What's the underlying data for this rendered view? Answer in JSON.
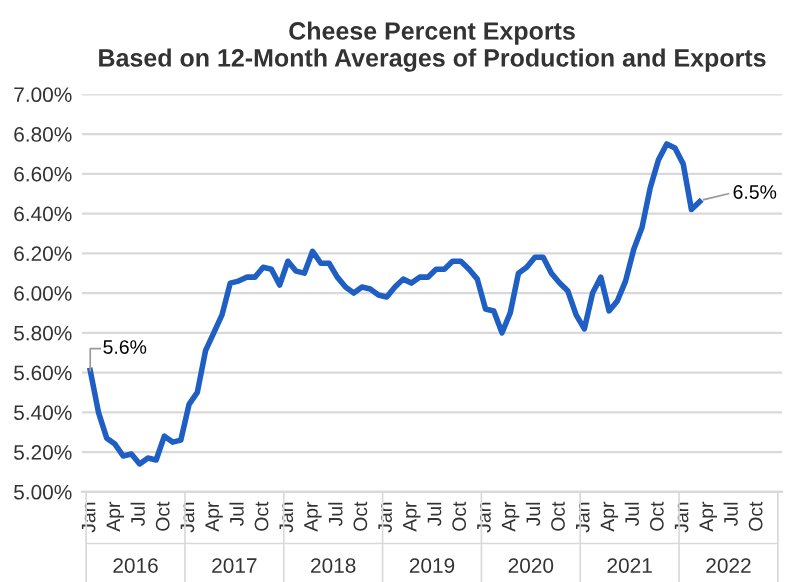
{
  "chart_data": {
    "type": "line",
    "title": "Cheese Percent Exports\nBased on 12-Month Averages of Production and Exports",
    "categories": [
      "Jan",
      null,
      null,
      "Apr",
      null,
      null,
      "Jul",
      null,
      null,
      "Oct",
      null,
      null,
      "Jan",
      null,
      null,
      "Apr",
      null,
      null,
      "Jul",
      null,
      null,
      "Oct",
      null,
      null,
      "Jan",
      null,
      null,
      "Apr",
      null,
      null,
      "Jul",
      null,
      null,
      "Oct",
      null,
      null,
      "Jan",
      null,
      null,
      "Apr",
      null,
      null,
      "Jul",
      null,
      null,
      "Oct",
      null,
      null,
      "Jan",
      null,
      null,
      "Apr",
      null,
      null,
      "Jul",
      null,
      null,
      "Oct",
      null,
      null,
      "Jan",
      null,
      null,
      "Apr",
      null,
      null,
      "Jul",
      null,
      null,
      "Oct",
      null,
      null,
      "Jan",
      null,
      null,
      "Apr",
      null,
      null,
      "Jul",
      null,
      null,
      "Oct",
      null,
      null
    ],
    "series": [
      {
        "color": "#1f5fc4",
        "values": [
          5.61,
          5.4,
          5.27,
          5.24,
          5.18,
          5.19,
          5.14,
          5.17,
          5.16,
          5.28,
          5.25,
          5.26,
          5.44,
          5.5,
          5.71,
          5.8,
          5.89,
          6.05,
          6.06,
          6.08,
          6.08,
          6.13,
          6.12,
          6.04,
          6.16,
          6.11,
          6.1,
          6.21,
          6.15,
          6.15,
          6.08,
          6.03,
          6.0,
          6.03,
          6.02,
          5.99,
          5.98,
          6.03,
          6.07,
          6.05,
          6.08,
          6.08,
          6.12,
          6.12,
          6.16,
          6.16,
          6.12,
          6.07,
          5.92,
          5.91,
          5.8,
          5.9,
          6.1,
          6.13,
          6.18,
          6.18,
          6.1,
          6.05,
          6.01,
          5.89,
          5.82,
          6.0,
          6.08,
          5.91,
          5.96,
          6.06,
          6.22,
          6.33,
          6.53,
          6.67,
          6.75,
          6.73,
          6.65,
          6.42,
          6.46,
          null,
          null,
          null,
          null,
          null,
          null,
          null,
          null,
          null
        ]
      }
    ],
    "annotations": [
      "5.6%",
      "6.5%",
      "2016",
      "2017",
      "2018",
      "2019",
      "2020",
      "2021",
      "2022"
    ],
    "ylim": [
      5.0,
      7.0
    ],
    "yticks": [
      {
        "value": 5.0,
        "label": "5.00%"
      },
      {
        "value": 5.2,
        "label": "5.20%"
      },
      {
        "value": 5.4,
        "label": "5.40%"
      },
      {
        "value": 5.6,
        "label": "5.60%"
      },
      {
        "value": 5.8,
        "label": "5.80%"
      },
      {
        "value": 6.0,
        "label": "6.00%"
      },
      {
        "value": 6.2,
        "label": "6.20%"
      },
      {
        "value": 6.4,
        "label": "6.40%"
      },
      {
        "value": 6.6,
        "label": "6.60%"
      },
      {
        "value": 6.8,
        "label": "6.80%"
      },
      {
        "value": 7.0,
        "label": "7.00%"
      }
    ],
    "grid": "y",
    "legend": false,
    "marker": "none",
    "line_style": "solid"
  }
}
